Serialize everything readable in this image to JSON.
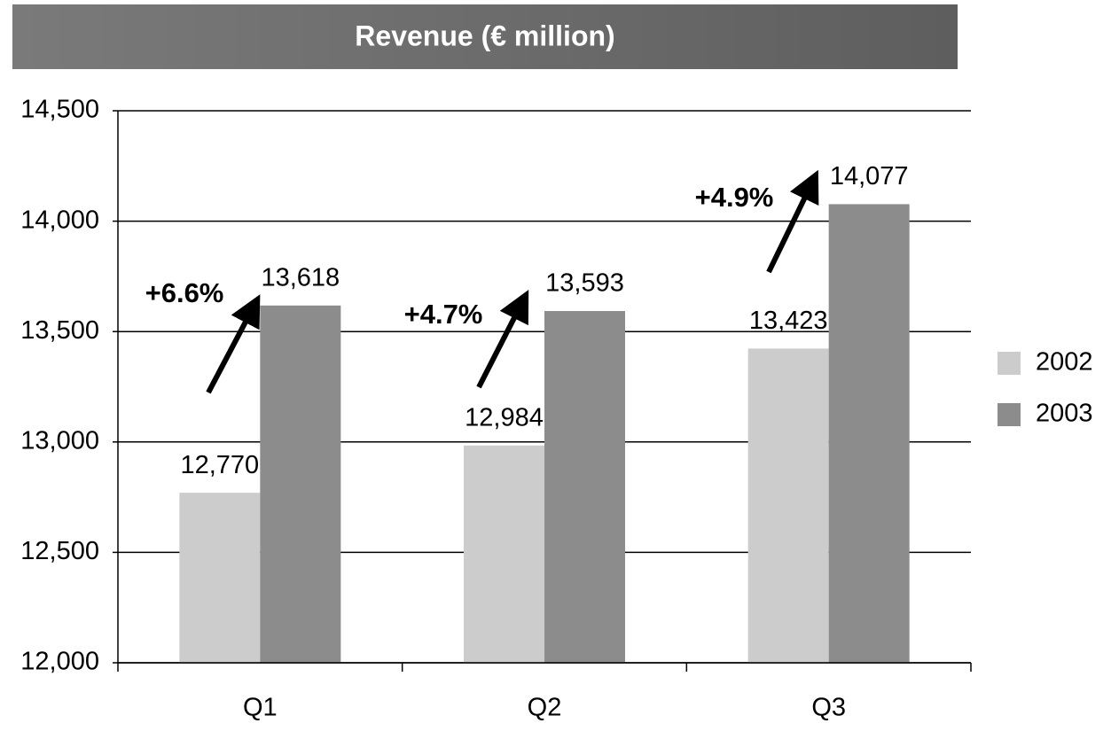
{
  "chart_data": {
    "type": "bar",
    "title": "Revenue (€ million)",
    "categories": [
      "Q1",
      "Q2",
      "Q3"
    ],
    "series": [
      {
        "name": "2002",
        "color": "#cccccc",
        "values": [
          12770,
          12984,
          13423
        ],
        "value_labels": [
          "12,770",
          "12,984",
          "13,423"
        ]
      },
      {
        "name": "2003",
        "color": "#8c8c8c",
        "values": [
          13618,
          13593,
          14077
        ],
        "value_labels": [
          "13,618",
          "13,593",
          "14,077"
        ]
      }
    ],
    "annotations": [
      "+6.6%",
      "+4.7%",
      "+4.9%"
    ],
    "ylim": [
      12000,
      14500
    ],
    "yticks": [
      {
        "value": 12000,
        "label": "12,000"
      },
      {
        "value": 12500,
        "label": "12,500"
      },
      {
        "value": 13000,
        "label": "13,000"
      },
      {
        "value": 13500,
        "label": "13,500"
      },
      {
        "value": 14000,
        "label": "14,000"
      },
      {
        "value": 14500,
        "label": "14,500"
      }
    ],
    "grid": true,
    "legend": "right"
  }
}
